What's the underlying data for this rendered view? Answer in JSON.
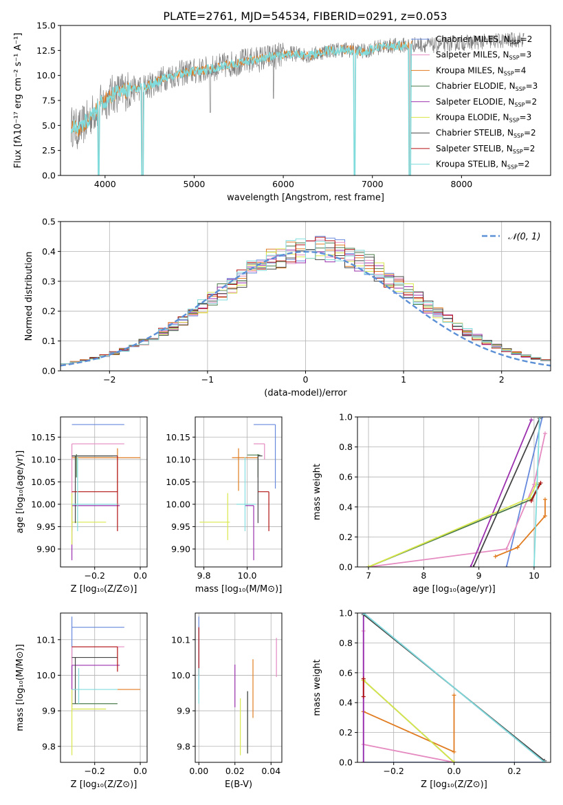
{
  "page_title": "PLATE=2761, MJD=54534, FIBERID=0291, z=0.053",
  "colors": {
    "MILES_Chabrier": "#6688dd",
    "MILES_Salpeter": "#e58ac0",
    "MILES_Kroupa": "#e07b20",
    "ELODIE_Chabrier": "#4a7a4a",
    "ELODIE_Salpeter": "#9b2fae",
    "ELODIE_Kroupa": "#d8e84a",
    "STELIB_Chabrier": "#444444",
    "STELIB_Salpeter": "#b01010",
    "STELIB_Kroupa": "#80dcdc",
    "data": "#808080",
    "gaussian": "#5b8fd6"
  },
  "chart_data": [
    {
      "id": "spectrum",
      "type": "line",
      "title": "PLATE=2761, MJD=54534, FIBERID=0291, z=0.053",
      "xlabel": "wavelength [Angstrom, rest frame]",
      "ylabel": "Flux [fλ10⁻¹⁷ erg cm⁻² s⁻¹ A⁻¹]",
      "xlim": [
        3500,
        9000
      ],
      "ylim": [
        0,
        15
      ],
      "xticks": [
        4000,
        5000,
        6000,
        7000,
        8000
      ],
      "yticks": [
        0.0,
        2.5,
        5.0,
        7.5,
        10.0,
        12.5,
        15.0
      ],
      "grid": false,
      "legend_position": "top-right",
      "legend": [
        {
          "name": "Chabrier MILES, N",
          "sub": "SSP",
          "suffix": "=2",
          "color": "#6688dd"
        },
        {
          "name": "Salpeter MILES, N",
          "sub": "SSP",
          "suffix": "=3",
          "color": "#e58ac0"
        },
        {
          "name": "Kroupa MILES, N",
          "sub": "SSP",
          "suffix": "=4",
          "color": "#e07b20"
        },
        {
          "name": "Chabrier ELODIE, N",
          "sub": "SSP",
          "suffix": "=3",
          "color": "#4a7a4a"
        },
        {
          "name": "Salpeter ELODIE, N",
          "sub": "SSP",
          "suffix": "=2",
          "color": "#9b2fae"
        },
        {
          "name": "Kroupa ELODIE, N",
          "sub": "SSP",
          "suffix": "=3",
          "color": "#d8e84a"
        },
        {
          "name": "Chabrier STELIB, N",
          "sub": "SSP",
          "suffix": "=2",
          "color": "#444444"
        },
        {
          "name": "Salpeter STELIB, N",
          "sub": "SSP",
          "suffix": "=2",
          "color": "#b01010"
        },
        {
          "name": "Kroupa STELIB, N",
          "sub": "SSP",
          "suffix": "=2",
          "color": "#80dcdc"
        }
      ],
      "continuum": [
        [
          3620,
          5.0
        ],
        [
          3700,
          4.5
        ],
        [
          3800,
          5.5
        ],
        [
          3900,
          6.6
        ],
        [
          4000,
          7.5
        ],
        [
          4100,
          8.2
        ],
        [
          4300,
          8.6
        ],
        [
          4500,
          9.0
        ],
        [
          4700,
          9.9
        ],
        [
          4900,
          10.3
        ],
        [
          5100,
          10.5
        ],
        [
          5300,
          10.9
        ],
        [
          5500,
          11.3
        ],
        [
          5700,
          11.6
        ],
        [
          5900,
          11.9
        ],
        [
          6100,
          12.2
        ],
        [
          6300,
          12.0
        ],
        [
          6500,
          12.5
        ],
        [
          6700,
          12.6
        ],
        [
          6900,
          12.4
        ],
        [
          7100,
          12.9
        ],
        [
          7300,
          13.0
        ],
        [
          7500,
          13.1
        ],
        [
          7700,
          13.0
        ],
        [
          7900,
          13.2
        ],
        [
          8100,
          13.3
        ],
        [
          8300,
          13.4
        ],
        [
          8500,
          13.5
        ],
        [
          8700,
          13.6
        ]
      ],
      "dips": [
        {
          "x": 3930,
          "y": 0.0
        },
        {
          "x": 4420,
          "y": 0.0
        },
        {
          "x": 5180,
          "y": 6.3
        },
        {
          "x": 5890,
          "y": 7.7
        },
        {
          "x": 6800,
          "y": 0.0
        },
        {
          "x": 7420,
          "y": 0.0
        }
      ]
    },
    {
      "id": "residuals",
      "type": "histogram",
      "xlabel": "(data-model)/error",
      "ylabel": "Normed distribution",
      "xlim": [
        -2.5,
        2.5
      ],
      "ylim": [
        0,
        0.5
      ],
      "xticks": [
        -2,
        -1,
        0,
        1,
        2
      ],
      "yticks": [
        0.0,
        0.1,
        0.2,
        0.3,
        0.4,
        0.5
      ],
      "grid": true,
      "legend_position": "top-right",
      "legend": [
        {
          "name": "𝒩(0, 1)",
          "color": "#5b8fd6",
          "style": "dashed"
        }
      ],
      "bin_width": 0.1
    },
    {
      "id": "age-vs-Z",
      "type": "errorbar",
      "xlabel": "Z [log₁₀(Z/Z⊙)]",
      "ylabel": "age  [log₁₀(age/yr)]",
      "xlim": [
        -0.35,
        0.03
      ],
      "ylim": [
        9.86,
        10.195
      ],
      "xticks": [
        -0.2,
        0.0
      ],
      "yticks": [
        9.9,
        9.95,
        10.0,
        10.05,
        10.1,
        10.15
      ],
      "grid": true,
      "points": [
        {
          "x": -0.3,
          "x0": -0.3,
          "x1": -0.07,
          "y": 10.178,
          "y0": 10.178,
          "y1": 10.178,
          "color": "#6688dd"
        },
        {
          "x": -0.3,
          "x0": -0.3,
          "x1": -0.07,
          "y": 10.135,
          "y0": 9.94,
          "y1": 10.135,
          "color": "#e58ac0"
        },
        {
          "x": -0.1,
          "x0": -0.3,
          "x1": 0.0,
          "y": 10.104,
          "y0": 10.03,
          "y1": 10.125,
          "color": "#e07b20"
        },
        {
          "x": -0.28,
          "x0": -0.3,
          "x1": -0.12,
          "y": 10.108,
          "y0": 10.06,
          "y1": 10.112,
          "color": "#4a7a4a"
        },
        {
          "x": -0.3,
          "x0": -0.3,
          "x1": -0.09,
          "y": 9.997,
          "y0": 9.875,
          "y1": 9.997,
          "color": "#9b2fae"
        },
        {
          "x": -0.3,
          "x0": -0.3,
          "x1": -0.15,
          "y": 9.96,
          "y0": 9.91,
          "y1": 10.025,
          "color": "#d8e84a"
        },
        {
          "x": -0.285,
          "x0": -0.3,
          "x1": -0.1,
          "y": 10.108,
          "y0": 9.958,
          "y1": 10.108,
          "color": "#444444"
        },
        {
          "x": -0.1,
          "x0": -0.3,
          "x1": -0.1,
          "y": 10.028,
          "y0": 9.94,
          "y1": 10.108,
          "color": "#b01010"
        },
        {
          "x": -0.275,
          "x0": -0.3,
          "x1": -0.1,
          "y": 10.0,
          "y0": 9.94,
          "y1": 10.105,
          "color": "#80dcdc"
        }
      ]
    },
    {
      "id": "age-vs-mass",
      "type": "errorbar",
      "xlabel": "mass [log₁₀(M/M⊙)]",
      "ylabel": "",
      "xlim": [
        9.76,
        10.16
      ],
      "ylim": [
        9.86,
        10.195
      ],
      "xticks": [
        9.8,
        10.0
      ],
      "yticks": [
        9.9,
        9.95,
        10.0,
        10.05,
        10.1,
        10.15
      ],
      "grid": true,
      "points": [
        {
          "x": 10.13,
          "x0": 10.03,
          "x1": 10.13,
          "y": 10.178,
          "y0": 10.035,
          "y1": 10.178,
          "color": "#6688dd"
        },
        {
          "x": 10.08,
          "x0": 10.03,
          "x1": 10.08,
          "y": 10.135,
          "y0": 10.1,
          "y1": 10.135,
          "color": "#e58ac0"
        },
        {
          "x": 9.96,
          "x0": 9.93,
          "x1": 10.05,
          "y": 10.104,
          "y0": 10.03,
          "y1": 10.125,
          "color": "#e07b20"
        },
        {
          "x": 10.05,
          "x0": 10.0,
          "x1": 10.06,
          "y": 10.11,
          "y0": 10.06,
          "y1": 10.112,
          "color": "#4a7a4a"
        },
        {
          "x": 10.03,
          "x0": 9.99,
          "x1": 10.03,
          "y": 9.997,
          "y0": 9.875,
          "y1": 9.997,
          "color": "#9b2fae"
        },
        {
          "x": 9.91,
          "x0": 9.78,
          "x1": 9.92,
          "y": 9.96,
          "y0": 9.92,
          "y1": 10.025,
          "color": "#d8e84a"
        },
        {
          "x": 10.05,
          "x0": 10.05,
          "x1": 10.07,
          "y": 10.108,
          "y0": 9.958,
          "y1": 10.11,
          "color": "#444444"
        },
        {
          "x": 10.1,
          "x0": 10.05,
          "x1": 10.1,
          "y": 10.028,
          "y0": 9.94,
          "y1": 10.028,
          "color": "#b01010"
        },
        {
          "x": 9.99,
          "x0": 9.95,
          "x1": 10.04,
          "y": 10.0,
          "y0": 9.94,
          "y1": 10.105,
          "color": "#80dcdc"
        }
      ]
    },
    {
      "id": "weight-vs-age",
      "type": "line",
      "xlabel": "age  [log₁₀(age/yr)]",
      "ylabel": "mass weight",
      "xlim": [
        6.8,
        10.3
      ],
      "ylim": [
        0,
        1
      ],
      "xticks": [
        7,
        8,
        9,
        10
      ],
      "yticks": [
        0.0,
        0.2,
        0.4,
        0.6,
        0.8,
        1.0
      ],
      "grid": true,
      "series": [
        {
          "color": "#6688dd",
          "points": [
            [
              9.5,
              0.0
            ],
            [
              10.15,
              1.0
            ]
          ]
        },
        {
          "color": "#e58ac0",
          "points": [
            [
              7.0,
              0.0
            ],
            [
              9.5,
              0.12
            ],
            [
              10.0,
              0.55
            ],
            [
              10.2,
              0.89
            ]
          ]
        },
        {
          "color": "#e07b20",
          "points": [
            [
              9.3,
              0.07
            ],
            [
              9.7,
              0.13
            ],
            [
              10.2,
              0.34
            ],
            [
              10.2,
              0.45
            ]
          ]
        },
        {
          "color": "#4a7a4a",
          "points": [
            [
              7.0,
              0.0
            ],
            [
              9.95,
              0.45
            ],
            [
              10.1,
              0.55
            ]
          ]
        },
        {
          "color": "#9b2fae",
          "points": [
            [
              8.85,
              0.0
            ],
            [
              9.95,
              0.98
            ]
          ]
        },
        {
          "color": "#d8e84a",
          "points": [
            [
              7.0,
              0.0
            ],
            [
              9.92,
              0.46
            ],
            [
              10.05,
              0.56
            ]
          ]
        },
        {
          "color": "#444444",
          "points": [
            [
              8.9,
              0.0
            ],
            [
              10.1,
              0.99
            ]
          ]
        },
        {
          "color": "#b01010",
          "points": [
            [
              9.95,
              0.44
            ],
            [
              10.12,
              0.56
            ]
          ]
        },
        {
          "color": "#80dcdc",
          "points": [
            [
              10.0,
              0.0
            ],
            [
              10.1,
              1.0
            ]
          ]
        }
      ]
    },
    {
      "id": "mass-vs-Z",
      "type": "errorbar",
      "xlabel": "Z [log₁₀(Z/Z⊙)]",
      "ylabel": "mass [log₁₀(M/M⊙)]",
      "xlim": [
        -0.35,
        0.03
      ],
      "ylim": [
        9.755,
        10.175
      ],
      "xticks": [
        -0.2,
        0.0
      ],
      "yticks": [
        9.8,
        9.9,
        10.0,
        10.1
      ],
      "grid": true,
      "points": [
        {
          "x": -0.3,
          "x0": -0.3,
          "x1": -0.07,
          "y": 10.135,
          "y0": 10.0,
          "y1": 10.165,
          "color": "#6688dd"
        },
        {
          "x": -0.3,
          "x0": -0.3,
          "x1": -0.07,
          "y": 10.08,
          "y0": 9.96,
          "y1": 10.08,
          "color": "#e58ac0"
        },
        {
          "x": -0.1,
          "x0": -0.1,
          "x1": 0.0,
          "y": 9.96,
          "y0": 9.96,
          "y1": 9.96,
          "color": "#e07b20"
        },
        {
          "x": -0.28,
          "x0": -0.3,
          "x1": -0.1,
          "y": 9.92,
          "y0": 9.92,
          "y1": 9.92,
          "color": "#4a7a4a"
        },
        {
          "x": -0.3,
          "x0": -0.3,
          "x1": -0.09,
          "y": 10.028,
          "y0": 9.91,
          "y1": 10.028,
          "color": "#9b2fae"
        },
        {
          "x": -0.3,
          "x0": -0.3,
          "x1": -0.15,
          "y": 9.905,
          "y0": 9.775,
          "y1": 9.96,
          "color": "#d8e84a"
        },
        {
          "x": -0.285,
          "x0": -0.3,
          "x1": -0.1,
          "y": 10.05,
          "y0": 9.92,
          "y1": 10.05,
          "color": "#444444"
        },
        {
          "x": -0.1,
          "x0": -0.3,
          "x1": -0.1,
          "y": 10.08,
          "y0": 10.01,
          "y1": 10.08,
          "color": "#b01010"
        },
        {
          "x": -0.27,
          "x0": -0.3,
          "x1": -0.1,
          "y": 9.96,
          "y0": 9.92,
          "y1": 10.02,
          "color": "#80dcdc"
        }
      ]
    },
    {
      "id": "mass-vs-ebv",
      "type": "errorbar",
      "xlabel": "E(B-V)",
      "ylabel": "",
      "xlim": [
        -0.002,
        0.046
      ],
      "ylim": [
        9.755,
        10.175
      ],
      "xticks": [
        0.0,
        0.02,
        0.04
      ],
      "yticks": [
        9.8,
        9.9,
        10.0,
        10.1
      ],
      "grid": true,
      "points": [
        {
          "x": 0.0,
          "y": 10.0,
          "y0": 9.96,
          "y1": 10.165,
          "color": "#6688dd"
        },
        {
          "x": 0.043,
          "y": 10.05,
          "y0": 9.995,
          "y1": 10.105,
          "color": "#e58ac0"
        },
        {
          "x": 0.03,
          "y": 9.96,
          "y0": 9.88,
          "y1": 10.045,
          "color": "#e07b20"
        },
        {
          "x": 0.027,
          "y": 9.865,
          "y0": 9.78,
          "y1": 9.955,
          "color": "#4a7a4a"
        },
        {
          "x": 0.02,
          "y": 9.96,
          "y0": 9.91,
          "y1": 10.03,
          "color": "#9b2fae"
        },
        {
          "x": 0.023,
          "y": 9.86,
          "y0": 9.775,
          "y1": 9.935,
          "color": "#d8e84a"
        },
        {
          "x": 0.027,
          "y": 9.865,
          "y0": 9.78,
          "y1": 9.955,
          "color": "#444444"
        },
        {
          "x": 0.0,
          "y": 10.05,
          "y0": 10.0,
          "y1": 10.135,
          "color": "#b01010"
        },
        {
          "x": 0.0,
          "y": 9.96,
          "y0": 9.92,
          "y1": 10.02,
          "color": "#80dcdc"
        }
      ]
    },
    {
      "id": "weight-vs-Z",
      "type": "line",
      "xlabel": "Z [log₁₀(Z/Z⊙)]",
      "ylabel": "mass weight",
      "xlim": [
        -0.32,
        0.32
      ],
      "ylim": [
        0,
        1
      ],
      "xticks": [
        -0.2,
        0.0,
        0.2
      ],
      "yticks": [
        0.0,
        0.2,
        0.4,
        0.6,
        0.8,
        1.0
      ],
      "grid": true,
      "series": [
        {
          "color": "#6688dd",
          "points": [
            [
              -0.3,
              1.0
            ],
            [
              -0.3,
              0.0
            ],
            [
              0.3,
              0.0
            ],
            [
              -0.3,
              1.0
            ]
          ]
        },
        {
          "color": "#e58ac0",
          "points": [
            [
              -0.3,
              0.88
            ],
            [
              -0.3,
              0.12
            ],
            [
              0.0,
              0.0
            ]
          ]
        },
        {
          "color": "#e07b20",
          "points": [
            [
              -0.3,
              0.34
            ],
            [
              0.0,
              0.07
            ],
            [
              0.0,
              0.45
            ]
          ]
        },
        {
          "color": "#4a7a4a",
          "points": [
            [
              -0.3,
              0.55
            ],
            [
              0.0,
              0.0
            ]
          ]
        },
        {
          "color": "#9b2fae",
          "points": [
            [
              -0.3,
              1.0
            ],
            [
              -0.3,
              0.0
            ]
          ]
        },
        {
          "color": "#d8e84a",
          "points": [
            [
              -0.3,
              0.55
            ],
            [
              0.0,
              0.0
            ]
          ]
        },
        {
          "color": "#444444",
          "points": [
            [
              -0.3,
              0.99
            ],
            [
              0.3,
              0.01
            ]
          ]
        },
        {
          "color": "#b01010",
          "points": [
            [
              -0.3,
              0.44
            ],
            [
              -0.3,
              0.56
            ]
          ]
        },
        {
          "color": "#80dcdc",
          "points": [
            [
              -0.3,
              1.0
            ],
            [
              0.3,
              0.0
            ]
          ]
        }
      ]
    }
  ]
}
